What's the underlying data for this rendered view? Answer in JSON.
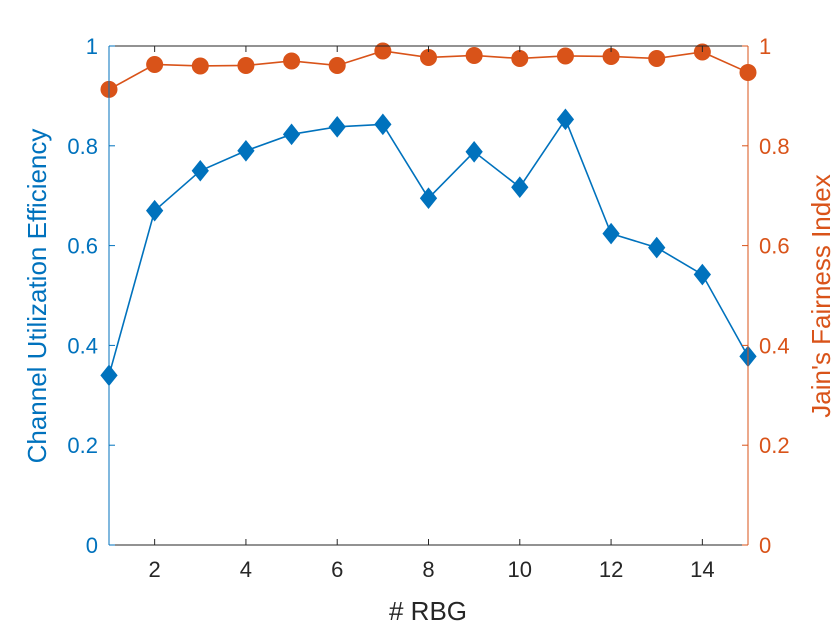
{
  "chart_data": {
    "type": "line",
    "xlabel": "# RBG",
    "ylabel_left": "Channel Utilization Efficiency",
    "ylabel_right": "Jain's Fairness Index",
    "xlim": [
      1,
      15
    ],
    "ylim_left": [
      0,
      1
    ],
    "ylim_right": [
      0,
      1
    ],
    "x": [
      1,
      2,
      3,
      4,
      5,
      6,
      7,
      8,
      9,
      10,
      11,
      12,
      13,
      14,
      15
    ],
    "x_ticks": [
      2,
      4,
      6,
      8,
      10,
      12,
      14
    ],
    "y_ticks_left": [
      0,
      0.2,
      0.4,
      0.6,
      0.8,
      1
    ],
    "y_ticks_right": [
      0,
      0.2,
      0.4,
      0.6,
      0.8,
      1
    ],
    "grid": false,
    "series": [
      {
        "axis": "left",
        "marker": "diamond",
        "color": "#0072BD",
        "values": [
          0.34,
          0.67,
          0.75,
          0.79,
          0.823,
          0.838,
          0.843,
          0.695,
          0.788,
          0.717,
          0.853,
          0.624,
          0.596,
          0.542,
          0.378
        ]
      },
      {
        "axis": "right",
        "marker": "circle",
        "color": "#D95319",
        "values": [
          0.913,
          0.963,
          0.96,
          0.961,
          0.97,
          0.961,
          0.99,
          0.977,
          0.981,
          0.975,
          0.98,
          0.979,
          0.975,
          0.988,
          0.947
        ]
      }
    ]
  }
}
